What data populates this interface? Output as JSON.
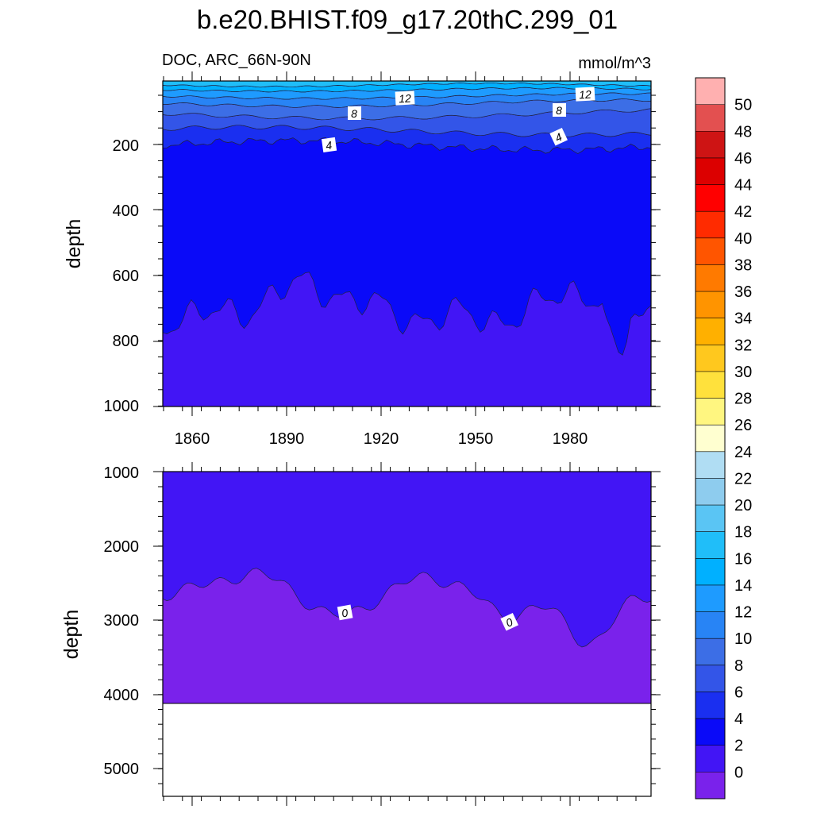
{
  "chart_data": {
    "type": "contour",
    "title": "b.e20.BHIST.f09_g17.20thC.299_01",
    "subtitle_left": "DOC, ARC_66N-90N",
    "subtitle_right": "mmol/m^3",
    "x_tick_labels": [
      "1860",
      "1890",
      "1920",
      "1950",
      "1980"
    ],
    "x_tick_values": [
      1860,
      1890,
      1920,
      1950,
      1980
    ],
    "xlim": [
      1850,
      2005
    ],
    "panels": [
      {
        "name": "upper",
        "ylabel": "depth",
        "ylim": [
          0,
          1000
        ],
        "y_tick_values": [
          200,
          400,
          600,
          800,
          1000
        ],
        "y_tick_labels": [
          "200",
          "400",
          "600",
          "800",
          "1000"
        ],
        "contour_labels": [
          "12",
          "8",
          "4",
          "12",
          "8",
          "4"
        ]
      },
      {
        "name": "lower",
        "ylabel": "depth",
        "ylim": [
          1000,
          5400
        ],
        "y_tick_values": [
          1000,
          2000,
          3000,
          4000,
          5000
        ],
        "y_tick_labels": [
          "1000",
          "2000",
          "3000",
          "4000",
          "5000"
        ],
        "contour_labels": [
          "0",
          "0"
        ],
        "ocean_floor_depth": 4120
      }
    ],
    "colorbar": {
      "labels": [
        "50",
        "48",
        "46",
        "44",
        "42",
        "40",
        "38",
        "36",
        "34",
        "32",
        "30",
        "28",
        "26",
        "24",
        "22",
        "20",
        "18",
        "16",
        "14",
        "12",
        "10",
        "8",
        "6",
        "4",
        "2",
        "0"
      ],
      "colors": [
        "#FFB0B0",
        "#E35050",
        "#CE1414",
        "#DC0000",
        "#FF0000",
        "#FF2B00",
        "#FF5500",
        "#FF7A00",
        "#FF9400",
        "#FFB000",
        "#FFC81E",
        "#FFE13C",
        "#FFF680",
        "#FFFFD0",
        "#B0DDF3",
        "#8ECCEE",
        "#5AC5F4",
        "#20BEF9",
        "#00B0FF",
        "#1E9BFF",
        "#2884F5",
        "#3C6EE6",
        "#3355E8",
        "#1A2FF0",
        "#0A0AF8",
        "#4215F5",
        "#7A22EB"
      ]
    }
  }
}
